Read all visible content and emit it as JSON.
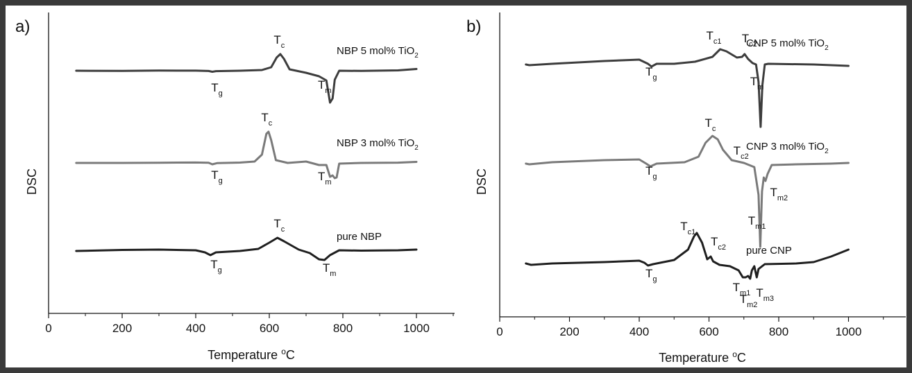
{
  "chart_data": [
    {
      "type": "line",
      "panel_label": "a)",
      "xlabel": "Temperature °C",
      "ylabel": "DSC",
      "xlim": [
        0,
        1100
      ],
      "xticks": [
        0,
        200,
        400,
        600,
        800,
        1000
      ],
      "grid": false,
      "series": [
        {
          "name": "NBP 5 mol% TiO2",
          "label_parts": [
            "NBP 5 mol% TiO",
            "2"
          ],
          "color": "#3d3d3d",
          "points": [
            [
              75,
              0
            ],
            [
              200,
              -0.3
            ],
            [
              300,
              0.2
            ],
            [
              400,
              0.1
            ],
            [
              435,
              -0.4
            ],
            [
              445,
              -1.5
            ],
            [
              455,
              -0.6
            ],
            [
              520,
              0
            ],
            [
              580,
              1
            ],
            [
              605,
              5
            ],
            [
              620,
              19
            ],
            [
              630,
              24
            ],
            [
              640,
              17
            ],
            [
              655,
              2
            ],
            [
              700,
              -3
            ],
            [
              735,
              -8
            ],
            [
              755,
              -14
            ],
            [
              765,
              -46
            ],
            [
              772,
              -40
            ],
            [
              778,
              -13
            ],
            [
              790,
              0
            ],
            [
              850,
              -0.3
            ],
            [
              950,
              0.5
            ],
            [
              1000,
              2.5
            ]
          ],
          "annotations": [
            {
              "base": "T",
              "sub": "c",
              "x": 612,
              "y": 39
            },
            {
              "base": "T",
              "sub": "g",
              "x": 442,
              "y": -30
            },
            {
              "base": "T",
              "sub": "m",
              "x": 732,
              "y": -26
            }
          ]
        },
        {
          "name": "NBP 3 mol% TiO2",
          "label_parts": [
            "NBP 3 mol% TiO",
            "2"
          ],
          "color": "#7a7a7a",
          "points": [
            [
              75,
              0
            ],
            [
              200,
              0
            ],
            [
              300,
              0.3
            ],
            [
              400,
              0.6
            ],
            [
              435,
              0.2
            ],
            [
              445,
              -2
            ],
            [
              458,
              -0.3
            ],
            [
              520,
              0.5
            ],
            [
              560,
              2
            ],
            [
              580,
              12
            ],
            [
              592,
              42
            ],
            [
              598,
              45
            ],
            [
              605,
              33
            ],
            [
              618,
              4
            ],
            [
              650,
              0
            ],
            [
              700,
              2
            ],
            [
              735,
              -3
            ],
            [
              755,
              -3
            ],
            [
              765,
              -20
            ],
            [
              772,
              -18
            ],
            [
              778,
              -22
            ],
            [
              783,
              -21
            ],
            [
              790,
              -1
            ],
            [
              850,
              0
            ],
            [
              950,
              0.4
            ],
            [
              1000,
              1.5
            ]
          ],
          "annotations": [
            {
              "base": "T",
              "sub": "c",
              "x": 578,
              "y": 60
            },
            {
              "base": "T",
              "sub": "g",
              "x": 442,
              "y": -23
            },
            {
              "base": "T",
              "sub": "m",
              "x": 732,
              "y": -25
            }
          ]
        },
        {
          "name": "pure NBP",
          "label_parts": [
            "pure NBP",
            ""
          ],
          "color": "#1f1f1f",
          "points": [
            [
              75,
              0
            ],
            [
              200,
              1.5
            ],
            [
              300,
              2
            ],
            [
              400,
              1
            ],
            [
              425,
              -2
            ],
            [
              440,
              -6
            ],
            [
              455,
              -2
            ],
            [
              520,
              0
            ],
            [
              570,
              3
            ],
            [
              600,
              12
            ],
            [
              622,
              19
            ],
            [
              640,
              14
            ],
            [
              680,
              2
            ],
            [
              710,
              -3
            ],
            [
              735,
              -12
            ],
            [
              750,
              -13
            ],
            [
              765,
              -6
            ],
            [
              790,
              1
            ],
            [
              850,
              0.5
            ],
            [
              950,
              1
            ],
            [
              1000,
              2
            ]
          ],
          "annotations": [
            {
              "base": "T",
              "sub": "c",
              "x": 612,
              "y": 34
            },
            {
              "base": "T",
              "sub": "g",
              "x": 440,
              "y": -25
            },
            {
              "base": "T",
              "sub": "m",
              "x": 745,
              "y": -30
            }
          ]
        }
      ]
    },
    {
      "type": "line",
      "panel_label": "b)",
      "xlabel": "Temperature °C",
      "ylabel": "DSC",
      "xlim": [
        0,
        1100
      ],
      "xticks": [
        0,
        200,
        400,
        600,
        800,
        1000
      ],
      "grid": false,
      "series": [
        {
          "name": "CNP 5 mol% TiO2",
          "label_parts": [
            "CNP 5 mol% TiO",
            "2"
          ],
          "color": "#3d3d3d",
          "points": [
            [
              75,
              0
            ],
            [
              85,
              -1
            ],
            [
              150,
              1
            ],
            [
              300,
              5
            ],
            [
              400,
              7
            ],
            [
              425,
              1
            ],
            [
              435,
              -3
            ],
            [
              450,
              1
            ],
            [
              500,
              1
            ],
            [
              560,
              4
            ],
            [
              610,
              11
            ],
            [
              632,
              22
            ],
            [
              650,
              19
            ],
            [
              680,
              10
            ],
            [
              695,
              11
            ],
            [
              702,
              15
            ],
            [
              712,
              8
            ],
            [
              725,
              2
            ],
            [
              735,
              0
            ],
            [
              742,
              -25
            ],
            [
              748,
              -90
            ],
            [
              753,
              -30
            ],
            [
              760,
              0
            ],
            [
              770,
              1
            ],
            [
              900,
              0
            ],
            [
              1000,
              -2
            ]
          ],
          "annotations": [
            {
              "base": "T",
              "sub": "c1",
              "x": 592,
              "y": 36
            },
            {
              "base": "T",
              "sub": "c2",
              "x": 694,
              "y": 32
            },
            {
              "base": "T",
              "sub": "g",
              "x": 418,
              "y": -16
            },
            {
              "base": "T",
              "sub": "m",
              "x": 718,
              "y": -30
            }
          ]
        },
        {
          "name": "CNP 3 mol% TiO2",
          "label_parts": [
            "CNP 3 mol% TiO",
            "2"
          ],
          "color": "#7a7a7a",
          "points": [
            [
              75,
              0
            ],
            [
              85,
              -1
            ],
            [
              150,
              2
            ],
            [
              300,
              5
            ],
            [
              400,
              6
            ],
            [
              420,
              0
            ],
            [
              432,
              -4
            ],
            [
              450,
              0
            ],
            [
              530,
              2
            ],
            [
              570,
              10
            ],
            [
              590,
              30
            ],
            [
              610,
              40
            ],
            [
              625,
              35
            ],
            [
              640,
              20
            ],
            [
              665,
              5
            ],
            [
              700,
              1
            ],
            [
              730,
              -5
            ],
            [
              742,
              -45
            ],
            [
              747,
              -120
            ],
            [
              752,
              -40
            ],
            [
              757,
              -20
            ],
            [
              762,
              -25
            ],
            [
              768,
              -15
            ],
            [
              780,
              -2
            ],
            [
              850,
              -1
            ],
            [
              950,
              0
            ],
            [
              1000,
              1
            ]
          ],
          "annotations": [
            {
              "base": "T",
              "sub": "c",
              "x": 588,
              "y": 53
            },
            {
              "base": "T",
              "sub": "c2",
              "x": 670,
              "y": 13
            },
            {
              "base": "T",
              "sub": "g",
              "x": 418,
              "y": -16
            },
            {
              "base": "T",
              "sub": "m1",
              "x": 712,
              "y": -88
            },
            {
              "base": "T",
              "sub": "m2",
              "x": 775,
              "y": -47
            }
          ]
        },
        {
          "name": "pure CNP",
          "label_parts": [
            "pure CNP",
            ""
          ],
          "color": "#1f1f1f",
          "points": [
            [
              75,
              0
            ],
            [
              90,
              -2
            ],
            [
              150,
              0
            ],
            [
              300,
              2
            ],
            [
              400,
              4
            ],
            [
              415,
              1
            ],
            [
              425,
              -3
            ],
            [
              440,
              -1
            ],
            [
              500,
              5
            ],
            [
              540,
              20
            ],
            [
              557,
              39
            ],
            [
              565,
              44
            ],
            [
              580,
              30
            ],
            [
              595,
              6
            ],
            [
              605,
              10
            ],
            [
              612,
              3
            ],
            [
              630,
              -2
            ],
            [
              660,
              -4
            ],
            [
              685,
              -10
            ],
            [
              697,
              -20
            ],
            [
              705,
              -20
            ],
            [
              712,
              -18
            ],
            [
              718,
              -22
            ],
            [
              723,
              -10
            ],
            [
              730,
              -4
            ],
            [
              737,
              -20
            ],
            [
              742,
              -8
            ],
            [
              760,
              -1
            ],
            [
              850,
              0
            ],
            [
              900,
              2
            ],
            [
              950,
              10
            ],
            [
              1000,
              20
            ]
          ],
          "annotations": [
            {
              "base": "T",
              "sub": "c1",
              "x": 518,
              "y": 48
            },
            {
              "base": "T",
              "sub": "c2",
              "x": 605,
              "y": 26
            },
            {
              "base": "T",
              "sub": "g",
              "x": 418,
              "y": -20
            },
            {
              "base": "T",
              "sub": "m1",
              "x": 668,
              "y": -40
            },
            {
              "base": "T",
              "sub": "m2",
              "x": 688,
              "y": -57
            },
            {
              "base": "T",
              "sub": "m3",
              "x": 735,
              "y": -48
            }
          ]
        }
      ]
    }
  ]
}
